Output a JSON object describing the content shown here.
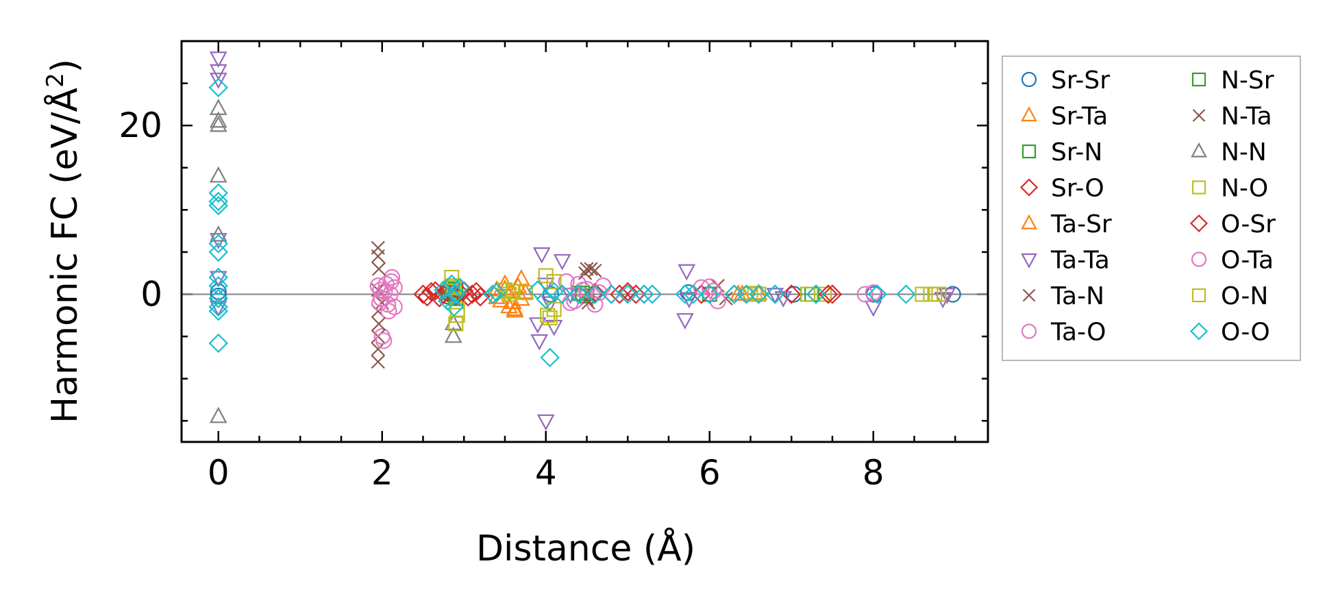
{
  "chart_data": {
    "type": "scatter",
    "title": "",
    "xlabel": "Distance (Å)",
    "ylabel_main": "Harmonic FC (eV/Å",
    "ylabel_sup": "2",
    "ylabel_close": ")",
    "xlim": [
      -0.45,
      9.4
    ],
    "ylim": [
      -17.5,
      30
    ],
    "xticks": [
      0,
      2,
      4,
      6,
      8
    ],
    "xtick_labels": [
      "0",
      "2",
      "4",
      "6",
      "8"
    ],
    "xminor_step": 0.5,
    "yticks": [
      0,
      20
    ],
    "ytick_labels": [
      "0",
      "20"
    ],
    "yminor_step": 5,
    "zero_line": 0,
    "legend_position": "outside-right",
    "legend_columns": 2,
    "series": [
      {
        "name": "Sr-Sr",
        "marker": "circle",
        "color": "#1f77b4",
        "points": [
          [
            0,
            0.3
          ],
          [
            0,
            -0.2
          ],
          [
            2.87,
            0.1
          ],
          [
            4.06,
            0
          ],
          [
            5.74,
            0.2
          ],
          [
            7.03,
            0
          ],
          [
            8.01,
            0
          ],
          [
            8.97,
            0
          ]
        ]
      },
      {
        "name": "Sr-Ta",
        "marker": "triangle",
        "color": "#ff7f0e",
        "points": [
          [
            3.4,
            0.5
          ],
          [
            3.45,
            -0.8
          ],
          [
            3.5,
            1.2
          ],
          [
            3.55,
            -1.5
          ],
          [
            3.58,
            0.3
          ],
          [
            3.62,
            -2.0
          ],
          [
            3.66,
            0.9
          ],
          [
            3.7,
            -0.6
          ],
          [
            3.75,
            0.2
          ],
          [
            6.35,
            0
          ],
          [
            6.6,
            0.1
          ]
        ]
      },
      {
        "name": "Sr-N",
        "marker": "square",
        "color": "#2ca02c",
        "points": [
          [
            2.8,
            0.2
          ],
          [
            2.85,
            -0.3
          ],
          [
            2.9,
            0.5
          ],
          [
            4.4,
            0.1
          ],
          [
            4.5,
            -0.2
          ],
          [
            6.0,
            0
          ],
          [
            7.2,
            0
          ]
        ]
      },
      {
        "name": "Sr-O",
        "marker": "diamond",
        "color": "#d62728",
        "points": [
          [
            2.5,
            0
          ],
          [
            2.6,
            0.3
          ],
          [
            2.7,
            -0.4
          ],
          [
            2.8,
            0.2
          ],
          [
            2.9,
            -0.2
          ],
          [
            3.0,
            0.4
          ],
          [
            3.1,
            0
          ],
          [
            3.2,
            -0.3
          ],
          [
            4.6,
            0.2
          ],
          [
            4.8,
            0
          ],
          [
            5.0,
            0.3
          ],
          [
            5.2,
            0
          ],
          [
            5.9,
            0
          ],
          [
            6.3,
            0
          ],
          [
            7.0,
            0
          ],
          [
            7.3,
            0
          ],
          [
            7.5,
            0
          ]
        ]
      },
      {
        "name": "Ta-Sr",
        "marker": "triangle",
        "color": "#ff7f0e",
        "points": [
          [
            3.4,
            -0.4
          ],
          [
            3.5,
            0.6
          ],
          [
            3.6,
            -1.0
          ],
          [
            3.7,
            1.8
          ],
          [
            3.62,
            -1.8
          ],
          [
            6.4,
            0
          ]
        ]
      },
      {
        "name": "Ta-Ta",
        "marker": "triangle_down",
        "color": "#9467bd",
        "points": [
          [
            0,
            28
          ],
          [
            0,
            26.5
          ],
          [
            0,
            25.5
          ],
          [
            0,
            2
          ],
          [
            0,
            -1.5
          ],
          [
            0,
            6.5
          ],
          [
            3.9,
            -3.5
          ],
          [
            3.92,
            -5.5
          ],
          [
            3.95,
            4.8
          ],
          [
            4.0,
            -15
          ],
          [
            4.1,
            -3.8
          ],
          [
            4.2,
            4.0
          ],
          [
            4.0,
            1.2
          ],
          [
            4.05,
            -1.0
          ],
          [
            4.3,
            0
          ],
          [
            5.7,
            -3.0
          ],
          [
            5.72,
            2.8
          ],
          [
            5.75,
            -0.5
          ],
          [
            6.8,
            0
          ],
          [
            6.9,
            -0.4
          ],
          [
            8.0,
            -1.5
          ],
          [
            8.85,
            -0.5
          ],
          [
            8.9,
            0
          ]
        ]
      },
      {
        "name": "Ta-N",
        "marker": "x",
        "color": "#8c564b",
        "points": [
          [
            1.95,
            5.5
          ],
          [
            1.95,
            4.5
          ],
          [
            1.95,
            -5.0
          ],
          [
            1.95,
            -6.5
          ],
          [
            1.95,
            -8.0
          ],
          [
            1.95,
            -2.0
          ],
          [
            1.95,
            0.5
          ],
          [
            2.0,
            -1.0
          ],
          [
            4.5,
            3.0
          ],
          [
            4.55,
            3.0
          ],
          [
            4.6,
            2.8
          ],
          [
            4.5,
            -0.6
          ],
          [
            6.1,
            1.0
          ],
          [
            6.2,
            -0.5
          ]
        ]
      },
      {
        "name": "Ta-O",
        "marker": "circle",
        "color": "#e377c2",
        "points": [
          [
            1.95,
            1.0
          ],
          [
            1.97,
            -1.0
          ],
          [
            1.98,
            0.5
          ],
          [
            2.0,
            -5.0
          ],
          [
            2.02,
            -5.5
          ],
          [
            2.05,
            1.2
          ],
          [
            2.08,
            -2.0
          ],
          [
            2.1,
            0
          ],
          [
            2.12,
            2.0
          ],
          [
            2.15,
            -1.5
          ],
          [
            2.15,
            0.8
          ],
          [
            4.25,
            1.5
          ],
          [
            4.3,
            -1.0
          ],
          [
            4.4,
            1.2
          ],
          [
            4.45,
            0.5
          ],
          [
            4.6,
            -1.2
          ],
          [
            4.7,
            1.0
          ],
          [
            5.9,
            0.8
          ],
          [
            6.0,
            0.9
          ],
          [
            6.1,
            -0.8
          ],
          [
            7.9,
            0
          ],
          [
            8.0,
            0.2
          ]
        ]
      },
      {
        "name": "N-Sr",
        "marker": "square",
        "color": "#2ca02c",
        "points": [
          [
            2.86,
            0.6
          ],
          [
            2.9,
            -0.5
          ],
          [
            4.45,
            0.1
          ],
          [
            7.25,
            0
          ]
        ]
      },
      {
        "name": "N-Ta",
        "marker": "x",
        "color": "#8c564b",
        "points": [
          [
            1.96,
            -3.5
          ],
          [
            1.96,
            3.0
          ],
          [
            4.52,
            -1.0
          ],
          [
            4.48,
            2.5
          ]
        ]
      },
      {
        "name": "N-N",
        "marker": "triangle",
        "color": "#7f7f7f",
        "points": [
          [
            0,
            22
          ],
          [
            0,
            20.5
          ],
          [
            0,
            20
          ],
          [
            0,
            14
          ],
          [
            0,
            7
          ],
          [
            0,
            -14.5
          ],
          [
            2.87,
            -5.0
          ],
          [
            2.87,
            -3.5
          ]
        ]
      },
      {
        "name": "N-O",
        "marker": "square",
        "color": "#bcbd22",
        "points": [
          [
            2.85,
            2.0
          ],
          [
            2.87,
            1.0
          ],
          [
            2.9,
            -3.5
          ],
          [
            2.92,
            -2.5
          ],
          [
            3.5,
            0.5
          ],
          [
            3.6,
            0.3
          ],
          [
            3.75,
            0.2
          ],
          [
            4.0,
            2.2
          ],
          [
            4.05,
            -2.8
          ],
          [
            4.1,
            1.5
          ],
          [
            4.1,
            -1.8
          ],
          [
            6.5,
            0
          ],
          [
            6.6,
            0
          ],
          [
            7.2,
            0
          ],
          [
            7.4,
            0
          ],
          [
            8.6,
            0
          ],
          [
            8.7,
            0
          ],
          [
            8.8,
            0
          ]
        ]
      },
      {
        "name": "O-Sr",
        "marker": "diamond",
        "color": "#d62728",
        "points": [
          [
            2.55,
            -0.3
          ],
          [
            2.65,
            0.4
          ],
          [
            2.75,
            0
          ],
          [
            2.95,
            0.2
          ],
          [
            3.05,
            -0.3
          ],
          [
            3.15,
            0.3
          ],
          [
            4.9,
            0
          ],
          [
            5.1,
            0
          ],
          [
            7.45,
            0
          ]
        ]
      },
      {
        "name": "O-Ta",
        "marker": "circle",
        "color": "#e377c2",
        "points": [
          [
            1.99,
            -0.5
          ],
          [
            2.03,
            0.3
          ],
          [
            2.07,
            -1.2
          ],
          [
            2.11,
            1.5
          ],
          [
            4.35,
            -0.8
          ],
          [
            4.5,
            0.6
          ],
          [
            4.65,
            0.2
          ],
          [
            6.05,
            0.4
          ]
        ]
      },
      {
        "name": "O-N",
        "marker": "square",
        "color": "#bcbd22",
        "points": [
          [
            2.88,
            0.8
          ],
          [
            2.92,
            -1.8
          ],
          [
            3.55,
            0
          ],
          [
            4.02,
            -2.5
          ],
          [
            6.55,
            0.1
          ],
          [
            8.75,
            0
          ]
        ]
      },
      {
        "name": "O-O",
        "marker": "diamond",
        "color": "#17becf",
        "points": [
          [
            0,
            24.5
          ],
          [
            0,
            12
          ],
          [
            0,
            11
          ],
          [
            0,
            10.5
          ],
          [
            0,
            6
          ],
          [
            0,
            5
          ],
          [
            0,
            2
          ],
          [
            0,
            1
          ],
          [
            0,
            -0.5
          ],
          [
            0,
            -1.5
          ],
          [
            0,
            -2
          ],
          [
            0,
            -5.8
          ],
          [
            2.75,
            0.5
          ],
          [
            2.8,
            -0.8
          ],
          [
            2.85,
            1.2
          ],
          [
            2.88,
            -1.5
          ],
          [
            2.9,
            0
          ],
          [
            2.95,
            0.8
          ],
          [
            3.35,
            0
          ],
          [
            3.4,
            0.2
          ],
          [
            3.9,
            0.5
          ],
          [
            4.0,
            -0.6
          ],
          [
            4.05,
            -7.5
          ],
          [
            4.1,
            0.3
          ],
          [
            4.2,
            0
          ],
          [
            4.4,
            0
          ],
          [
            4.6,
            0
          ],
          [
            4.8,
            0
          ],
          [
            5.0,
            0
          ],
          [
            5.2,
            0
          ],
          [
            5.3,
            0
          ],
          [
            5.7,
            0
          ],
          [
            5.8,
            0
          ],
          [
            6.0,
            0
          ],
          [
            6.3,
            0
          ],
          [
            6.45,
            0
          ],
          [
            6.6,
            0
          ],
          [
            6.8,
            0
          ],
          [
            7.3,
            0
          ],
          [
            8.05,
            0
          ],
          [
            8.4,
            0
          ]
        ]
      }
    ]
  }
}
